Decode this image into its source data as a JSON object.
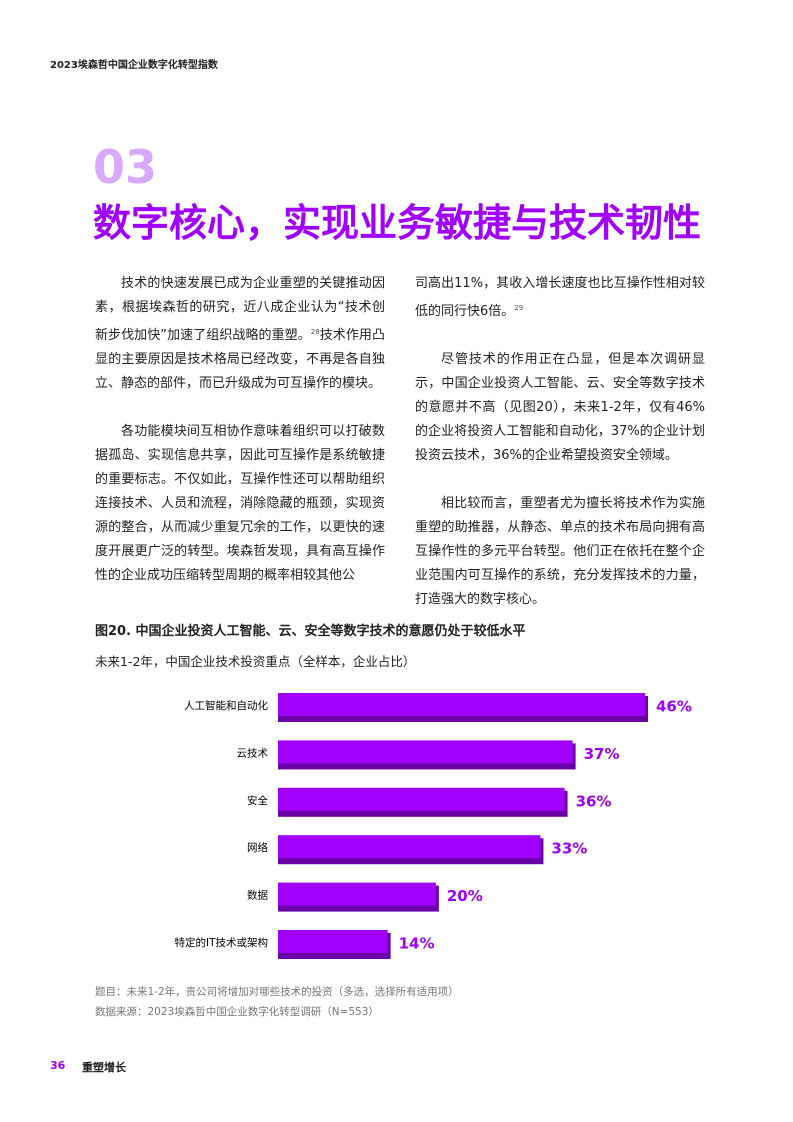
{
  "header": {
    "title": "2023埃森哲中国企业数字化转型指数"
  },
  "section": {
    "number": "03",
    "title": "数字核心，实现业务敏捷与技术韧性"
  },
  "columns": [
    [
      [
        {
          "text": "技术的快速发展已成为企业重塑的关键推动因素，根据埃森哲的研究，近八成企业认为“技术创新步伐加快”加速了组织战略的重塑。"
        },
        {
          "sup": "28"
        },
        {
          "text": "技术作用凸显的主要原因是技术格局已经改变，不再是各自独立、静态的部件，而已升级成为可互操作的模块。"
        }
      ],
      [
        {
          "text": "各功能模块间互相协作意味着组织可以打破数据孤岛、实现信息共享，因此可互操作是系统敏捷的重要标志。不仅如此，互操作性还可以帮助组织连接技术、人员和流程，消除隐藏的瓶颈，实现资源的整合，从而减少重复冗余的工作，以更快的速度开展更广泛的转型。埃森哲发现，具有高互操作性的企业成功压缩转型周期的概率相较其他公"
        }
      ]
    ],
    [
      [
        {
          "text": "司高出11%，其收入增长速度也比互操作性相对较低的同行快6倍。"
        },
        {
          "sup": "29"
        }
      ],
      [
        {
          "text": "尽管技术的作用正在凸显，但是本次调研显示，中国企业投资人工智能、云、安全等数字技术的意愿并不高（见图20），未来1-2年，仅有46%的企业将投资人工智能和自动化，37%的企业计划投资云技术，36%的企业希望投资安全领域。"
        }
      ],
      [
        {
          "text": "相比较而言，重塑者尤为擅长将技术作为实施重塑的助推器，从静态、单点的技术布局向拥有高互操作性的多元平台转型。他们正在依托在整个企业范围内可互操作的系统，充分发挥技术的力量，打造强大的数字核心。"
        }
      ]
    ]
  ],
  "chart_data": {
    "type": "bar",
    "orientation": "horizontal",
    "title": "图20. 中国企业投资人工智能、云、安全等数字技术的意愿仍处于较低水平",
    "subtitle": "未来1-2年，中国企业技术投资重点（全样本，企业占比）",
    "categories": [
      "人工智能和自动化",
      "云技术",
      "安全",
      "网络",
      "数据",
      "特定的IT技术或架构"
    ],
    "values": [
      46,
      37,
      36,
      33,
      20,
      14
    ],
    "value_labels": [
      "46%",
      "37%",
      "36%",
      "33%",
      "20%",
      "14%"
    ],
    "color": "#a100ff",
    "notes": [
      "题目：未来1-2年，贵公司将增加对哪些技术的投资（多选，选择所有适用项）",
      "数据来源：2023埃森哲中国企业数字化转型调研（N=553）"
    ]
  },
  "footer": {
    "page": "36",
    "section": "重塑增长"
  }
}
